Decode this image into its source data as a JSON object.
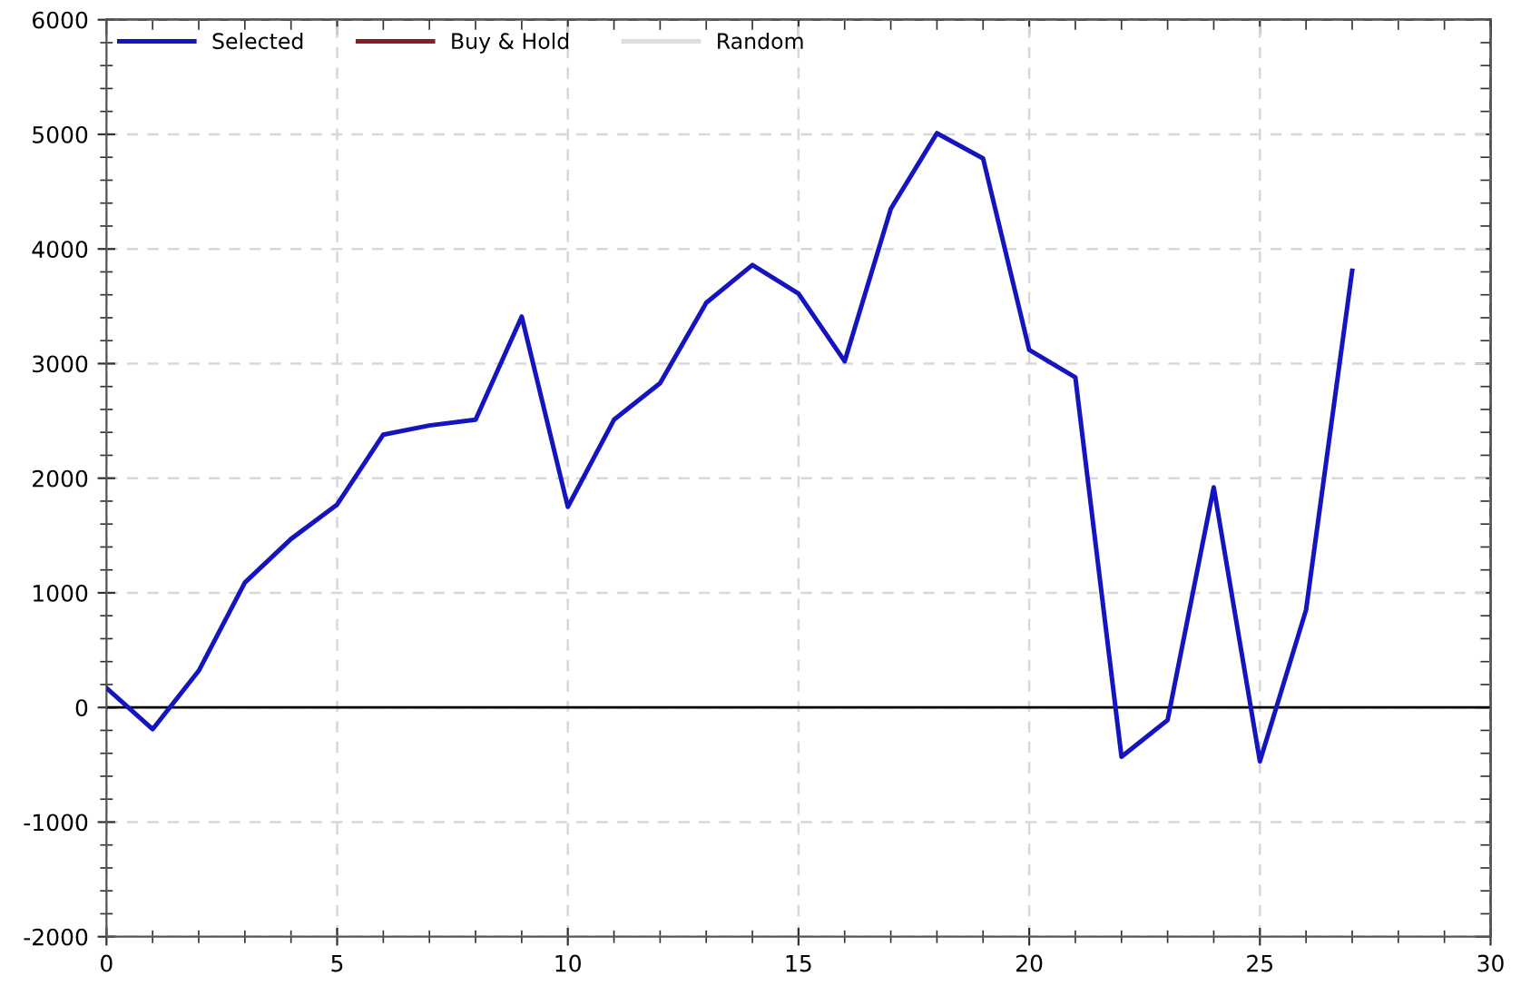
{
  "chart_data": {
    "type": "line",
    "x": [
      0,
      1,
      2,
      3,
      4,
      5,
      6,
      7,
      8,
      9,
      10,
      11,
      12,
      13,
      14,
      15,
      16,
      17,
      18,
      19,
      20,
      21,
      22,
      23,
      24,
      25,
      26,
      27
    ],
    "series": [
      {
        "name": "Selected",
        "color": "#1515c0",
        "values": [
          170,
          -190,
          320,
          1090,
          1470,
          1770,
          2380,
          2460,
          2510,
          3410,
          1750,
          2510,
          2830,
          3530,
          3860,
          3610,
          3020,
          4350,
          5010,
          4790,
          3120,
          2880,
          -430,
          -110,
          1920,
          -470,
          850,
          3810
        ]
      },
      {
        "name": "Buy & Hold",
        "color": "#8b1a2a",
        "values": [
          null,
          null,
          null,
          null,
          null,
          null,
          null,
          null,
          null,
          null,
          null,
          null,
          null,
          null,
          null,
          null,
          null,
          null,
          null,
          null,
          null,
          null,
          null,
          null,
          null,
          null,
          null,
          null
        ]
      },
      {
        "name": "Random",
        "color": "#dddddd",
        "values": [
          null,
          null,
          null,
          null,
          null,
          null,
          null,
          null,
          null,
          null,
          null,
          null,
          null,
          null,
          null,
          null,
          null,
          null,
          null,
          null,
          null,
          null,
          null,
          null,
          null,
          null,
          null,
          null
        ]
      }
    ],
    "xlim": [
      0,
      30
    ],
    "xticks": [
      0,
      {
        "value": 1,
        "label": null
      },
      {
        "value": 2,
        "label": null
      },
      {
        "value": 3,
        "label": null
      },
      {
        "value": 4,
        "label": null
      },
      5,
      {
        "value": 6,
        "label": null
      },
      {
        "value": 7,
        "label": null
      },
      {
        "value": 8,
        "label": null
      },
      {
        "value": 9,
        "label": null
      },
      10,
      {
        "value": 11,
        "label": null
      },
      {
        "value": 12,
        "label": null
      },
      {
        "value": 13,
        "label": null
      },
      {
        "value": 14,
        "label": null
      },
      15,
      {
        "value": 16,
        "label": null
      },
      {
        "value": 17,
        "label": null
      },
      {
        "value": 18,
        "label": null
      },
      {
        "value": 19,
        "label": null
      },
      20,
      {
        "value": 21,
        "label": null
      },
      {
        "value": 22,
        "label": null
      },
      {
        "value": 23,
        "label": null
      },
      {
        "value": 24,
        "label": null
      },
      25,
      {
        "value": 26,
        "label": null
      },
      {
        "value": 27,
        "label": null
      },
      {
        "value": 28,
        "label": null
      },
      {
        "value": 29,
        "label": null
      },
      30
    ],
    "ylim": [
      -2000,
      6000
    ],
    "yticks": [
      -2000,
      {
        "value": -1800,
        "label": null
      },
      {
        "value": -1600,
        "label": null
      },
      {
        "value": -1400,
        "label": null
      },
      {
        "value": -1200,
        "label": null
      },
      -1000,
      {
        "value": -800,
        "label": null
      },
      {
        "value": -600,
        "label": null
      },
      {
        "value": -400,
        "label": null
      },
      {
        "value": -200,
        "label": null
      },
      0,
      {
        "value": 200,
        "label": null
      },
      {
        "value": 400,
        "label": null
      },
      {
        "value": 600,
        "label": null
      },
      {
        "value": 800,
        "label": null
      },
      1000,
      {
        "value": 1200,
        "label": null
      },
      {
        "value": 1400,
        "label": null
      },
      {
        "value": 1600,
        "label": null
      },
      {
        "value": 1800,
        "label": null
      },
      2000,
      {
        "value": 2200,
        "label": null
      },
      {
        "value": 2400,
        "label": null
      },
      {
        "value": 2600,
        "label": null
      },
      {
        "value": 2800,
        "label": null
      },
      3000,
      {
        "value": 3200,
        "label": null
      },
      {
        "value": 3400,
        "label": null
      },
      {
        "value": 3600,
        "label": null
      },
      {
        "value": 3800,
        "label": null
      },
      4000,
      {
        "value": 4200,
        "label": null
      },
      {
        "value": 4400,
        "label": null
      },
      {
        "value": 4600,
        "label": null
      },
      {
        "value": 4800,
        "label": null
      },
      5000,
      {
        "value": 5200,
        "label": null
      },
      {
        "value": 5400,
        "label": null
      },
      {
        "value": 5600,
        "label": null
      },
      {
        "value": 5800,
        "label": null
      },
      6000
    ],
    "ref_lines": [
      {
        "axis": "y",
        "value": 0,
        "color": "#000000"
      }
    ],
    "grid": true,
    "legend": "top left",
    "marker": "none",
    "line_style": "solid"
  }
}
